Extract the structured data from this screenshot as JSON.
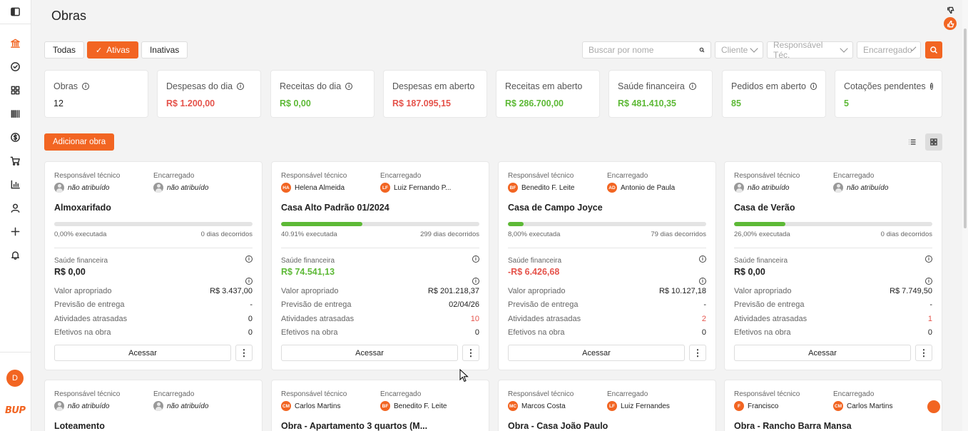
{
  "header": {
    "title": "Obras"
  },
  "tabs": [
    {
      "label": "Todas",
      "active": false
    },
    {
      "label": "Ativas",
      "active": true
    },
    {
      "label": "Inativas",
      "active": false
    }
  ],
  "search": {
    "placeholder": "Buscar por nome"
  },
  "filters": [
    {
      "placeholder": "Cliente"
    },
    {
      "placeholder": "Responsável Téc."
    },
    {
      "placeholder": "Encarregado"
    }
  ],
  "stats": [
    {
      "label": "Obras",
      "value": "12",
      "color": "dark",
      "info": true
    },
    {
      "label": "Despesas do dia",
      "value": "R$ 1.200,00",
      "color": "red",
      "info": true
    },
    {
      "label": "Receitas do dia",
      "value": "R$ 0,00",
      "color": "green",
      "info": true
    },
    {
      "label": "Despesas em aberto",
      "value": "R$ 187.095,15",
      "color": "red",
      "info": false
    },
    {
      "label": "Receitas em aberto",
      "value": "R$ 286.700,00",
      "color": "green",
      "info": false
    },
    {
      "label": "Saúde financeira",
      "value": "R$ 481.410,35",
      "color": "green",
      "info": true
    },
    {
      "label": "Pedidos em aberto",
      "value": "85",
      "color": "green",
      "info": true
    },
    {
      "label": "Cotações pendentes",
      "value": "5",
      "color": "green",
      "info": true
    }
  ],
  "actions": {
    "add_label": "Adicionar obra"
  },
  "card_labels": {
    "responsavel": "Responsável técnico",
    "encarregado": "Encarregado",
    "saude": "Saúde financeira",
    "valor": "Valor apropriado",
    "previsao": "Previsão de entrega",
    "atividades": "Atividades atrasadas",
    "efetivos": "Efetivos na obra",
    "access": "Acessar",
    "more": "⋮"
  },
  "cards": [
    {
      "resp": {
        "name": "não atribuído",
        "initials": "",
        "assigned": false
      },
      "enc": {
        "name": "não atribuído",
        "initials": "",
        "assigned": false
      },
      "title": "Almoxarifado",
      "progress": 0.0,
      "progress_label": "0,00% executada",
      "days": "0 dias decorridos",
      "saude": "R$ 0,00",
      "saude_color": "dark",
      "valor": "R$ 3.437,00",
      "previsao": "-",
      "atividades": "0",
      "atividades_red": false,
      "efetivos": "0"
    },
    {
      "resp": {
        "name": "Helena Almeida",
        "initials": "HA",
        "assigned": true
      },
      "enc": {
        "name": "Luiz Fernando P...",
        "initials": "LF",
        "assigned": true
      },
      "title": "Casa Alto Padrão 01/2024",
      "progress": 40.91,
      "progress_label": "40.91% executada",
      "days": "299 dias decorridos",
      "saude": "R$ 74.541,13",
      "saude_color": "green",
      "valor": "R$ 201.218,37",
      "previsao": "02/04/26",
      "atividades": "10",
      "atividades_red": true,
      "efetivos": "0"
    },
    {
      "resp": {
        "name": "Benedito F. Leite",
        "initials": "BF",
        "assigned": true
      },
      "enc": {
        "name": "Antonio de Paula",
        "initials": "AD",
        "assigned": true
      },
      "title": "Casa de Campo Joyce",
      "progress": 8.0,
      "progress_label": "8,00% executada",
      "days": "79 dias decorridos",
      "saude": "-R$ 6.426,68",
      "saude_color": "red",
      "valor": "R$ 10.127,18",
      "previsao": "-",
      "atividades": "2",
      "atividades_red": true,
      "efetivos": "0"
    },
    {
      "resp": {
        "name": "não atribuído",
        "initials": "",
        "assigned": false
      },
      "enc": {
        "name": "não atribuído",
        "initials": "",
        "assigned": false
      },
      "title": "Casa de Verão",
      "progress": 26.0,
      "progress_label": "26,00% executada",
      "days": "0 dias decorridos",
      "saude": "R$ 0,00",
      "saude_color": "dark",
      "valor": "R$ 7.749,50",
      "previsao": "-",
      "atividades": "1",
      "atividades_red": true,
      "efetivos": "0"
    },
    {
      "resp": {
        "name": "não atribuído",
        "initials": "",
        "assigned": false
      },
      "enc": {
        "name": "não atribuído",
        "initials": "",
        "assigned": false
      },
      "title": "Loteamento"
    },
    {
      "resp": {
        "name": "Carlos Martins",
        "initials": "CM",
        "assigned": true
      },
      "enc": {
        "name": "Benedito F. Leite",
        "initials": "BF",
        "assigned": true
      },
      "title": "Obra - Apartamento 3 quartos (M..."
    },
    {
      "resp": {
        "name": "Marcos Costa",
        "initials": "MC",
        "assigned": true
      },
      "enc": {
        "name": "Luiz Fernandes",
        "initials": "LF",
        "assigned": true
      },
      "title": "Obra - Casa João Paulo"
    },
    {
      "resp": {
        "name": "Francisco",
        "initials": "F",
        "assigned": true
      },
      "enc": {
        "name": "Carlos Martins",
        "initials": "CM",
        "assigned": true
      },
      "title": "Obra - Rancho Barra Mansa"
    }
  ],
  "user": {
    "initial": "D"
  },
  "brand": {
    "logo_text": "BUP"
  },
  "colors": {
    "accent": "#f26522",
    "green": "#5db936",
    "red": "#e5534b"
  },
  "sidebar_icons": [
    "panel-toggle-icon",
    "bank-icon",
    "check-circle-icon",
    "grid-icon",
    "barcode-icon",
    "dollar-icon",
    "cart-icon",
    "bar-chart-icon",
    "user-icon",
    "plus-icon",
    "bell-icon"
  ]
}
